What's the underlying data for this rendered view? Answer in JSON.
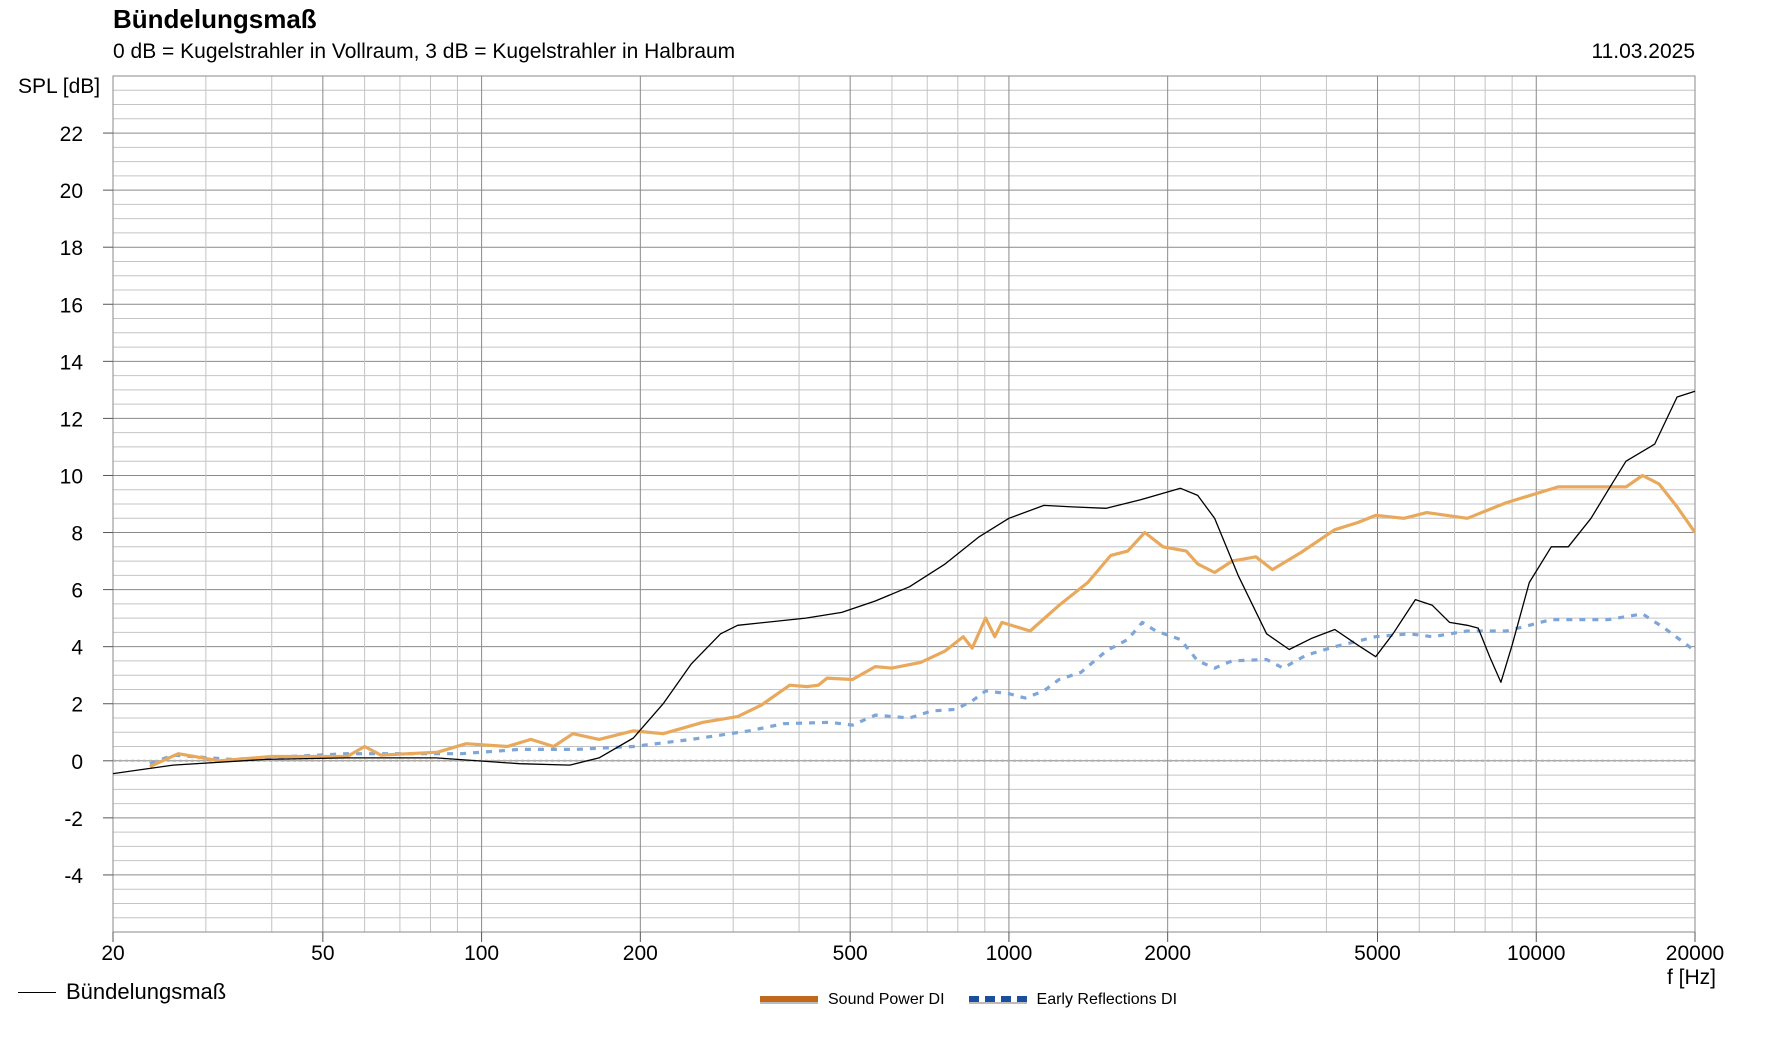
{
  "header": {
    "title": "Bündelungsmaß",
    "subtitle": "0 dB = Kugelstrahler in Vollraum, 3 dB = Kugelstrahler in Halbraum",
    "date": "11.03.2025"
  },
  "chart_data": {
    "type": "line",
    "title": "Bündelungsmaß",
    "subtitle": "0 dB = Kugelstrahler in Vollraum, 3 dB = Kugelstrahler in Halbraum",
    "xlabel": "f [Hz]",
    "ylabel": "SPL [dB]",
    "xscale": "log",
    "xlim": [
      20,
      20000
    ],
    "ylim": [
      -6,
      24
    ],
    "grid": true,
    "x_ticks": [
      "20",
      "50",
      "100",
      "200",
      "500",
      "1000",
      "2000",
      "5000",
      "10000",
      "20000"
    ],
    "x_tick_values": [
      20,
      50,
      100,
      200,
      500,
      1000,
      2000,
      5000,
      10000,
      20000
    ],
    "y_ticks": [
      "22",
      "20",
      "18",
      "16",
      "14",
      "12",
      "10",
      "8",
      "6",
      "4",
      "2",
      "0",
      "-2",
      "-4"
    ],
    "y_tick_values": [
      22,
      20,
      18,
      16,
      14,
      12,
      10,
      8,
      6,
      4,
      2,
      0,
      -2,
      -4
    ],
    "legend": [
      {
        "label": "Bündelungsmaß",
        "placement": "bottom-left"
      },
      {
        "label": "Sound Power DI",
        "placement": "bottom-center"
      },
      {
        "label": "Early Reflections DI",
        "placement": "bottom-center"
      }
    ],
    "series": [
      {
        "name": "Bündelungsmaß",
        "color": "#000000",
        "x": [
          20,
          26,
          39,
          55.6,
          82,
          118,
          147,
          167,
          194,
          221,
          250,
          284,
          306,
          412,
          482,
          558,
          648,
          757,
          878,
          1000,
          1165,
          1318,
          1530,
          1777,
          2115,
          2280,
          2455,
          2720,
          3080,
          3400,
          3760,
          4150,
          4590,
          4960,
          5350,
          5900,
          6350,
          6850,
          7400,
          7760,
          8160,
          8570,
          9000,
          9700,
          10680,
          11500,
          12700,
          13700,
          14800,
          16770,
          18500,
          20000
        ],
        "y": [
          -0.45,
          -0.15,
          0.05,
          0.1,
          0.1,
          -0.1,
          -0.15,
          0.1,
          0.8,
          2.0,
          3.4,
          4.45,
          4.75,
          5.0,
          5.2,
          5.6,
          6.1,
          6.9,
          7.85,
          8.5,
          8.95,
          8.9,
          8.85,
          9.15,
          9.55,
          9.3,
          8.5,
          6.5,
          4.45,
          3.9,
          4.3,
          4.6,
          4.05,
          3.65,
          4.45,
          5.65,
          5.45,
          4.85,
          4.75,
          4.65,
          3.65,
          2.75,
          4.05,
          6.25,
          7.5,
          7.5,
          8.5,
          9.5,
          10.5,
          11.1,
          12.75,
          12.95
        ]
      },
      {
        "name": "Sound Power DI",
        "color": "#e8a95c",
        "x": [
          23.5,
          26.6,
          31.8,
          39.9,
          55.6,
          60,
          64.4,
          82.5,
          93.5,
          112,
          124,
          137,
          149,
          167,
          194,
          221,
          263,
          306,
          339,
          384,
          414,
          435,
          452,
          505,
          558,
          600,
          680,
          757,
          819,
          852,
          903,
          940,
          970,
          1097,
          1245,
          1411,
          1560,
          1680,
          1810,
          1960,
          2170,
          2280,
          2455,
          2650,
          2940,
          3160,
          3580,
          4150,
          4590,
          4960,
          5610,
          6200,
          7400,
          8780,
          11000,
          12400,
          14800,
          15900,
          17100,
          18500,
          20000
        ],
        "y": [
          -0.2,
          0.25,
          0,
          0.15,
          0.15,
          0.5,
          0.2,
          0.3,
          0.6,
          0.5,
          0.75,
          0.5,
          0.95,
          0.75,
          1.05,
          0.95,
          1.35,
          1.55,
          1.95,
          2.65,
          2.6,
          2.65,
          2.9,
          2.85,
          3.3,
          3.25,
          3.45,
          3.85,
          4.35,
          3.95,
          5.0,
          4.35,
          4.85,
          4.55,
          5.45,
          6.25,
          7.2,
          7.35,
          8.0,
          7.5,
          7.35,
          6.9,
          6.6,
          7.0,
          7.15,
          6.7,
          7.3,
          8.1,
          8.35,
          8.6,
          8.5,
          8.7,
          8.5,
          9.05,
          9.6,
          9.6,
          9.6,
          10.0,
          9.7,
          8.9,
          8.0
        ]
      },
      {
        "name": "Early Reflections DI",
        "color": "#7ea6d8",
        "x": [
          23.5,
          26,
          33.5,
          55.6,
          91.5,
          118,
          151,
          194,
          250,
          322,
          374,
          458,
          505,
          558,
          648,
          714,
          792,
          852,
          903,
          1000,
          1073,
          1165,
          1245,
          1370,
          1530,
          1680,
          1790,
          1900,
          2115,
          2280,
          2455,
          2650,
          3080,
          3310,
          3660,
          4150,
          4960,
          5740,
          6350,
          7400,
          8780,
          9700,
          10680,
          13700,
          15900,
          17500,
          20000
        ],
        "y": [
          -0.1,
          0.2,
          0.05,
          0.25,
          0.25,
          0.4,
          0.4,
          0.5,
          0.75,
          1.05,
          1.3,
          1.35,
          1.25,
          1.6,
          1.5,
          1.75,
          1.8,
          2.1,
          2.45,
          2.35,
          2.2,
          2.45,
          2.85,
          3.1,
          3.85,
          4.25,
          4.85,
          4.55,
          4.25,
          3.5,
          3.25,
          3.5,
          3.55,
          3.25,
          3.7,
          4.0,
          4.35,
          4.45,
          4.35,
          4.55,
          4.55,
          4.75,
          4.95,
          4.95,
          5.15,
          4.65,
          3.85
        ]
      }
    ]
  }
}
